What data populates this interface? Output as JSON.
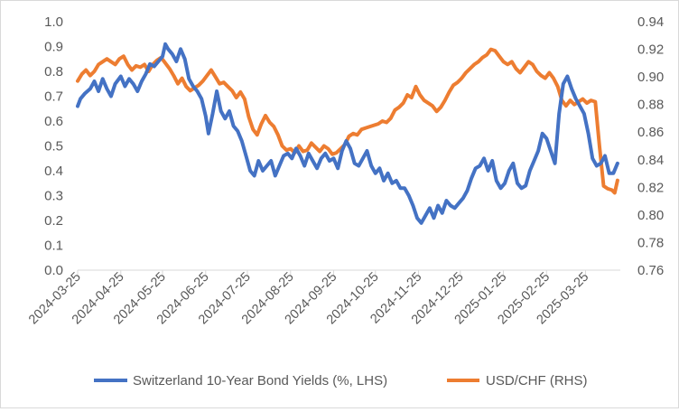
{
  "chart_data": {
    "type": "line",
    "title": "",
    "xlabel": "",
    "left_axis": {
      "label": "",
      "ylim": [
        0.0,
        1.0
      ],
      "ticks": [
        "0.0",
        "0.1",
        "0.2",
        "0.3",
        "0.4",
        "0.5",
        "0.6",
        "0.7",
        "0.8",
        "0.9",
        "1.0"
      ]
    },
    "right_axis": {
      "label": "",
      "ylim": [
        0.76,
        0.94
      ],
      "ticks": [
        "0.76",
        "0.78",
        "0.80",
        "0.82",
        "0.84",
        "0.86",
        "0.88",
        "0.90",
        "0.92",
        "0.94"
      ]
    },
    "x_ticks": [
      "2024-03-25",
      "2024-04-25",
      "2024-05-25",
      "2024-06-25",
      "2024-07-25",
      "2024-08-25",
      "2024-09-25",
      "2024-10-25",
      "2024-11-25",
      "2024-12-25",
      "2025-01-25",
      "2025-02-25",
      "2025-03-25"
    ],
    "grid": false,
    "legend_position": "bottom",
    "series": [
      {
        "name": "Switzerland 10-Year Bond Yields (%, LHS)",
        "axis": "left",
        "color": "#4472C4",
        "points": [
          [
            "2024-03-25",
            0.66
          ],
          [
            "2024-03-27",
            0.69
          ],
          [
            "2024-03-30",
            0.71
          ],
          [
            "2024-04-03",
            0.73
          ],
          [
            "2024-04-06",
            0.76
          ],
          [
            "2024-04-09",
            0.72
          ],
          [
            "2024-04-12",
            0.77
          ],
          [
            "2024-04-15",
            0.73
          ],
          [
            "2024-04-18",
            0.7
          ],
          [
            "2024-04-21",
            0.75
          ],
          [
            "2024-04-25",
            0.78
          ],
          [
            "2024-04-28",
            0.74
          ],
          [
            "2024-05-01",
            0.77
          ],
          [
            "2024-05-04",
            0.75
          ],
          [
            "2024-05-07",
            0.72
          ],
          [
            "2024-05-10",
            0.76
          ],
          [
            "2024-05-13",
            0.79
          ],
          [
            "2024-05-16",
            0.83
          ],
          [
            "2024-05-19",
            0.82
          ],
          [
            "2024-05-22",
            0.84
          ],
          [
            "2024-05-25",
            0.86
          ],
          [
            "2024-05-27",
            0.91
          ],
          [
            "2024-05-29",
            0.89
          ],
          [
            "2024-06-01",
            0.87
          ],
          [
            "2024-06-04",
            0.84
          ],
          [
            "2024-06-07",
            0.89
          ],
          [
            "2024-06-10",
            0.85
          ],
          [
            "2024-06-13",
            0.77
          ],
          [
            "2024-06-16",
            0.74
          ],
          [
            "2024-06-19",
            0.72
          ],
          [
            "2024-06-22",
            0.69
          ],
          [
            "2024-06-25",
            0.62
          ],
          [
            "2024-06-27",
            0.55
          ],
          [
            "2024-06-30",
            0.63
          ],
          [
            "2024-07-03",
            0.72
          ],
          [
            "2024-07-06",
            0.64
          ],
          [
            "2024-07-09",
            0.61
          ],
          [
            "2024-07-12",
            0.64
          ],
          [
            "2024-07-15",
            0.58
          ],
          [
            "2024-07-18",
            0.56
          ],
          [
            "2024-07-21",
            0.52
          ],
          [
            "2024-07-24",
            0.46
          ],
          [
            "2024-07-27",
            0.4
          ],
          [
            "2024-07-30",
            0.38
          ],
          [
            "2024-08-02",
            0.44
          ],
          [
            "2024-08-05",
            0.4
          ],
          [
            "2024-08-08",
            0.42
          ],
          [
            "2024-08-11",
            0.44
          ],
          [
            "2024-08-14",
            0.38
          ],
          [
            "2024-08-17",
            0.42
          ],
          [
            "2024-08-20",
            0.46
          ],
          [
            "2024-08-23",
            0.47
          ],
          [
            "2024-08-26",
            0.45
          ],
          [
            "2024-08-29",
            0.49
          ],
          [
            "2024-09-01",
            0.46
          ],
          [
            "2024-09-04",
            0.42
          ],
          [
            "2024-09-07",
            0.47
          ],
          [
            "2024-09-10",
            0.44
          ],
          [
            "2024-09-13",
            0.41
          ],
          [
            "2024-09-16",
            0.45
          ],
          [
            "2024-09-19",
            0.47
          ],
          [
            "2024-09-22",
            0.44
          ],
          [
            "2024-09-25",
            0.45
          ],
          [
            "2024-09-28",
            0.41
          ],
          [
            "2024-10-01",
            0.48
          ],
          [
            "2024-10-04",
            0.52
          ],
          [
            "2024-10-07",
            0.49
          ],
          [
            "2024-10-10",
            0.43
          ],
          [
            "2024-10-13",
            0.42
          ],
          [
            "2024-10-16",
            0.45
          ],
          [
            "2024-10-19",
            0.48
          ],
          [
            "2024-10-22",
            0.42
          ],
          [
            "2024-10-25",
            0.39
          ],
          [
            "2024-10-28",
            0.41
          ],
          [
            "2024-10-31",
            0.36
          ],
          [
            "2024-11-03",
            0.39
          ],
          [
            "2024-11-06",
            0.35
          ],
          [
            "2024-11-09",
            0.36
          ],
          [
            "2024-11-12",
            0.33
          ],
          [
            "2024-11-15",
            0.33
          ],
          [
            "2024-11-18",
            0.3
          ],
          [
            "2024-11-21",
            0.26
          ],
          [
            "2024-11-24",
            0.21
          ],
          [
            "2024-11-27",
            0.19
          ],
          [
            "2024-11-30",
            0.22
          ],
          [
            "2024-12-03",
            0.25
          ],
          [
            "2024-12-06",
            0.21
          ],
          [
            "2024-12-09",
            0.26
          ],
          [
            "2024-12-12",
            0.23
          ],
          [
            "2024-12-15",
            0.28
          ],
          [
            "2024-12-18",
            0.26
          ],
          [
            "2024-12-21",
            0.25
          ],
          [
            "2024-12-24",
            0.27
          ],
          [
            "2024-12-27",
            0.29
          ],
          [
            "2024-12-30",
            0.32
          ],
          [
            "2025-01-02",
            0.37
          ],
          [
            "2025-01-05",
            0.41
          ],
          [
            "2025-01-08",
            0.42
          ],
          [
            "2025-01-11",
            0.45
          ],
          [
            "2025-01-14",
            0.4
          ],
          [
            "2025-01-17",
            0.44
          ],
          [
            "2025-01-20",
            0.36
          ],
          [
            "2025-01-23",
            0.33
          ],
          [
            "2025-01-26",
            0.35
          ],
          [
            "2025-01-29",
            0.4
          ],
          [
            "2025-02-01",
            0.43
          ],
          [
            "2025-02-04",
            0.35
          ],
          [
            "2025-02-07",
            0.33
          ],
          [
            "2025-02-10",
            0.34
          ],
          [
            "2025-02-13",
            0.4
          ],
          [
            "2025-02-16",
            0.44
          ],
          [
            "2025-02-19",
            0.48
          ],
          [
            "2025-02-22",
            0.55
          ],
          [
            "2025-02-25",
            0.53
          ],
          [
            "2025-02-28",
            0.48
          ],
          [
            "2025-03-03",
            0.43
          ],
          [
            "2025-03-06",
            0.63
          ],
          [
            "2025-03-09",
            0.75
          ],
          [
            "2025-03-12",
            0.78
          ],
          [
            "2025-03-15",
            0.73
          ],
          [
            "2025-03-18",
            0.69
          ],
          [
            "2025-03-21",
            0.66
          ],
          [
            "2025-03-24",
            0.63
          ],
          [
            "2025-03-27",
            0.55
          ],
          [
            "2025-03-30",
            0.45
          ],
          [
            "2025-04-02",
            0.42
          ],
          [
            "2025-04-05",
            0.43
          ],
          [
            "2025-04-08",
            0.46
          ],
          [
            "2025-04-11",
            0.39
          ],
          [
            "2025-04-14",
            0.39
          ],
          [
            "2025-04-17",
            0.43
          ]
        ]
      },
      {
        "name": "USD/CHF (RHS)",
        "axis": "right",
        "color": "#ED7D31",
        "points": [
          [
            "2024-03-25",
            0.897
          ],
          [
            "2024-03-28",
            0.902
          ],
          [
            "2024-03-31",
            0.905
          ],
          [
            "2024-04-03",
            0.901
          ],
          [
            "2024-04-06",
            0.904
          ],
          [
            "2024-04-09",
            0.909
          ],
          [
            "2024-04-12",
            0.911
          ],
          [
            "2024-04-15",
            0.913
          ],
          [
            "2024-04-18",
            0.911
          ],
          [
            "2024-04-21",
            0.909
          ],
          [
            "2024-04-24",
            0.913
          ],
          [
            "2024-04-27",
            0.915
          ],
          [
            "2024-04-30",
            0.909
          ],
          [
            "2024-05-03",
            0.905
          ],
          [
            "2024-05-06",
            0.908
          ],
          [
            "2024-05-09",
            0.907
          ],
          [
            "2024-05-12",
            0.909
          ],
          [
            "2024-05-15",
            0.904
          ],
          [
            "2024-05-18",
            0.909
          ],
          [
            "2024-05-21",
            0.912
          ],
          [
            "2024-05-24",
            0.914
          ],
          [
            "2024-05-27",
            0.91
          ],
          [
            "2024-05-30",
            0.906
          ],
          [
            "2024-06-02",
            0.901
          ],
          [
            "2024-06-05",
            0.895
          ],
          [
            "2024-06-08",
            0.899
          ],
          [
            "2024-06-11",
            0.893
          ],
          [
            "2024-06-14",
            0.89
          ],
          [
            "2024-06-17",
            0.892
          ],
          [
            "2024-06-20",
            0.894
          ],
          [
            "2024-06-23",
            0.897
          ],
          [
            "2024-06-26",
            0.901
          ],
          [
            "2024-06-29",
            0.905
          ],
          [
            "2024-07-02",
            0.9
          ],
          [
            "2024-07-05",
            0.895
          ],
          [
            "2024-07-08",
            0.896
          ],
          [
            "2024-07-11",
            0.893
          ],
          [
            "2024-07-14",
            0.89
          ],
          [
            "2024-07-17",
            0.885
          ],
          [
            "2024-07-20",
            0.889
          ],
          [
            "2024-07-23",
            0.884
          ],
          [
            "2024-07-26",
            0.871
          ],
          [
            "2024-07-29",
            0.862
          ],
          [
            "2024-08-01",
            0.858
          ],
          [
            "2024-08-04",
            0.866
          ],
          [
            "2024-08-07",
            0.872
          ],
          [
            "2024-08-10",
            0.867
          ],
          [
            "2024-08-13",
            0.864
          ],
          [
            "2024-08-16",
            0.858
          ],
          [
            "2024-08-19",
            0.85
          ],
          [
            "2024-08-22",
            0.847
          ],
          [
            "2024-08-25",
            0.848
          ],
          [
            "2024-08-28",
            0.845
          ],
          [
            "2024-08-31",
            0.85
          ],
          [
            "2024-09-03",
            0.846
          ],
          [
            "2024-09-06",
            0.847
          ],
          [
            "2024-09-09",
            0.852
          ],
          [
            "2024-09-12",
            0.849
          ],
          [
            "2024-09-15",
            0.846
          ],
          [
            "2024-09-18",
            0.85
          ],
          [
            "2024-09-21",
            0.848
          ],
          [
            "2024-09-24",
            0.844
          ],
          [
            "2024-09-27",
            0.845
          ],
          [
            "2024-09-30",
            0.848
          ],
          [
            "2024-10-03",
            0.851
          ],
          [
            "2024-10-06",
            0.857
          ],
          [
            "2024-10-09",
            0.859
          ],
          [
            "2024-10-12",
            0.858
          ],
          [
            "2024-10-15",
            0.862
          ],
          [
            "2024-10-18",
            0.863
          ],
          [
            "2024-10-21",
            0.864
          ],
          [
            "2024-10-24",
            0.865
          ],
          [
            "2024-10-27",
            0.866
          ],
          [
            "2024-10-30",
            0.868
          ],
          [
            "2024-11-02",
            0.867
          ],
          [
            "2024-11-05",
            0.87
          ],
          [
            "2024-11-08",
            0.876
          ],
          [
            "2024-11-11",
            0.878
          ],
          [
            "2024-11-14",
            0.881
          ],
          [
            "2024-11-17",
            0.887
          ],
          [
            "2024-11-20",
            0.885
          ],
          [
            "2024-11-23",
            0.893
          ],
          [
            "2024-11-26",
            0.887
          ],
          [
            "2024-11-29",
            0.883
          ],
          [
            "2024-12-02",
            0.881
          ],
          [
            "2024-12-05",
            0.879
          ],
          [
            "2024-12-08",
            0.875
          ],
          [
            "2024-12-11",
            0.878
          ],
          [
            "2024-12-14",
            0.883
          ],
          [
            "2024-12-17",
            0.889
          ],
          [
            "2024-12-20",
            0.894
          ],
          [
            "2024-12-23",
            0.896
          ],
          [
            "2024-12-26",
            0.899
          ],
          [
            "2024-12-29",
            0.903
          ],
          [
            "2025-01-01",
            0.906
          ],
          [
            "2025-01-04",
            0.909
          ],
          [
            "2025-01-07",
            0.911
          ],
          [
            "2025-01-10",
            0.914
          ],
          [
            "2025-01-13",
            0.916
          ],
          [
            "2025-01-16",
            0.92
          ],
          [
            "2025-01-19",
            0.919
          ],
          [
            "2025-01-22",
            0.915
          ],
          [
            "2025-01-25",
            0.911
          ],
          [
            "2025-01-28",
            0.909
          ],
          [
            "2025-01-31",
            0.911
          ],
          [
            "2025-02-03",
            0.906
          ],
          [
            "2025-02-06",
            0.903
          ],
          [
            "2025-02-09",
            0.907
          ],
          [
            "2025-02-12",
            0.911
          ],
          [
            "2025-02-15",
            0.909
          ],
          [
            "2025-02-18",
            0.904
          ],
          [
            "2025-02-21",
            0.901
          ],
          [
            "2025-02-24",
            0.899
          ],
          [
            "2025-02-27",
            0.903
          ],
          [
            "2025-03-02",
            0.899
          ],
          [
            "2025-03-05",
            0.893
          ],
          [
            "2025-03-08",
            0.883
          ],
          [
            "2025-03-11",
            0.879
          ],
          [
            "2025-03-14",
            0.883
          ],
          [
            "2025-03-17",
            0.88
          ],
          [
            "2025-03-20",
            0.882
          ],
          [
            "2025-03-23",
            0.884
          ],
          [
            "2025-03-26",
            0.881
          ],
          [
            "2025-03-29",
            0.883
          ],
          [
            "2025-04-01",
            0.882
          ],
          [
            "2025-04-04",
            0.85
          ],
          [
            "2025-04-07",
            0.821
          ],
          [
            "2025-04-10",
            0.819
          ],
          [
            "2025-04-13",
            0.818
          ],
          [
            "2025-04-15",
            0.816
          ],
          [
            "2025-04-17",
            0.825
          ]
        ]
      }
    ]
  }
}
